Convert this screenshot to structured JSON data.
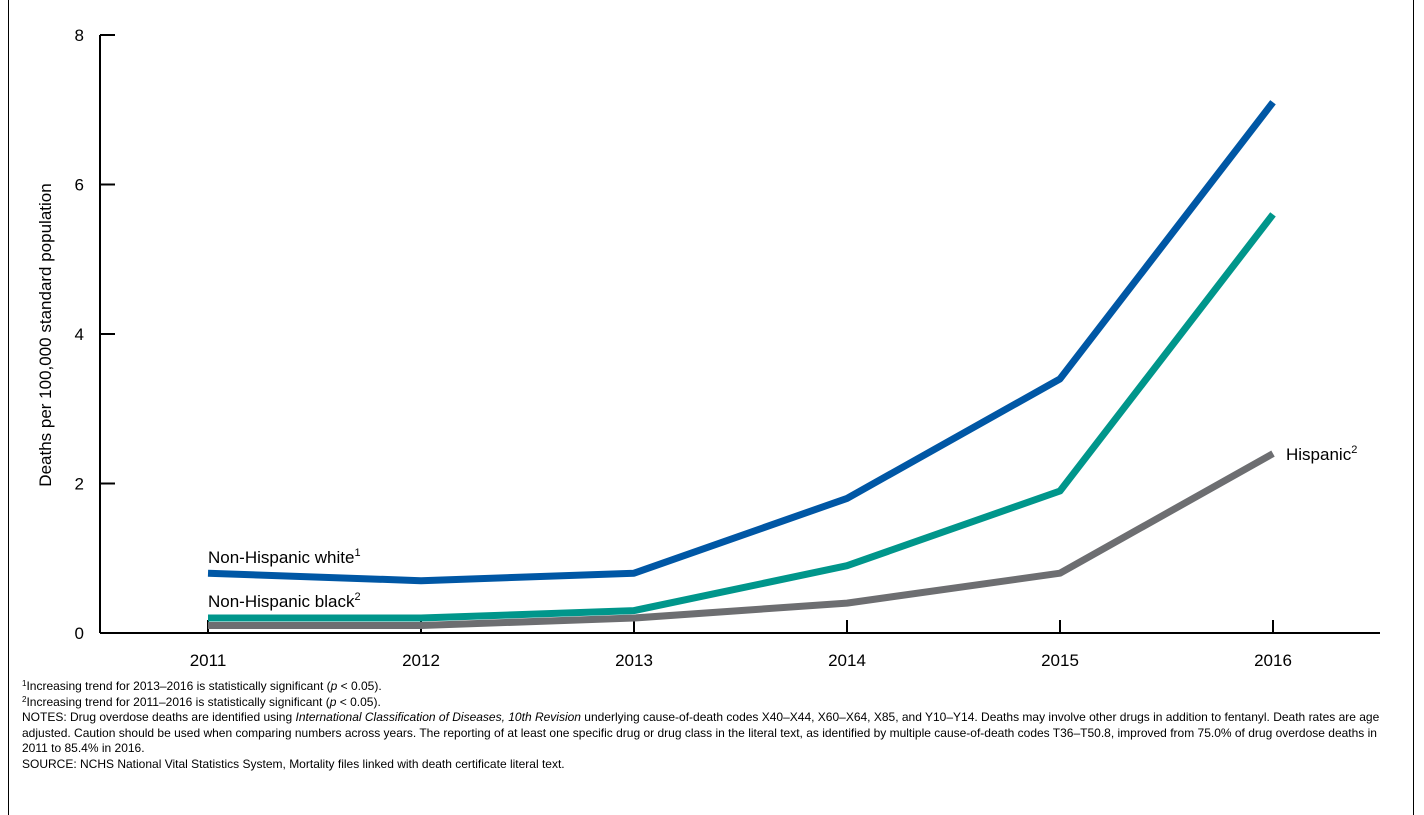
{
  "chart_data": {
    "type": "line",
    "title": "",
    "xlabel": "",
    "ylabel": "Deaths per 100,000 standard population",
    "x": [
      2011,
      2012,
      2013,
      2014,
      2015,
      2016
    ],
    "x_tick_labels": [
      "2011",
      "2012",
      "2013",
      "2014",
      "2015",
      "2016"
    ],
    "ylim": [
      0,
      8
    ],
    "y_ticks": [
      0,
      2,
      4,
      6,
      8
    ],
    "y_tick_labels": [
      "0",
      "2",
      "4",
      "6",
      "8"
    ],
    "grid": false,
    "series": [
      {
        "name": "Non-Hispanic white",
        "sup": "1",
        "color": "#0057a5",
        "values": [
          0.8,
          0.7,
          0.8,
          1.8,
          3.4,
          7.1
        ]
      },
      {
        "name": "Non-Hispanic black",
        "sup": "2",
        "color": "#00968b",
        "values": [
          0.2,
          0.2,
          0.3,
          0.9,
          1.9,
          5.6
        ]
      },
      {
        "name": "Hispanic",
        "sup": "2",
        "color": "#6d6e71",
        "values": [
          0.1,
          0.1,
          0.2,
          0.4,
          0.8,
          2.4
        ]
      }
    ]
  },
  "footnotes": {
    "note1": {
      "sup": "1",
      "text_before": "Increasing trend for 2013–2016 is statistically significant (",
      "p": "p",
      "text_after": " < 0.05)."
    },
    "note2": {
      "sup": "2",
      "text_before": "Increasing trend for 2011–2016 is statistically significant (",
      "p": "p",
      "text_after": " < 0.05)."
    },
    "notes": {
      "prefix": "NOTES: Drug overdose deaths are identified using ",
      "italic": "International Classification of Diseases, 10th Revision",
      "suffix": " underlying cause-of-death codes X40–X44, X60–X64, X85, and Y10–Y14. Deaths may involve other drugs in addition to fentanyl. Death rates are age adjusted. Caution should be used when comparing numbers across years. The reporting of at least one specific drug or drug class in the literal text, as identified by multiple cause-of-death codes T36–T50.8, improved from 75.0% of drug overdose deaths in 2011 to 85.4% in 2016."
    },
    "source": "SOURCE: NCHS National Vital Statistics System, Mortality files linked with death certificate literal text."
  }
}
